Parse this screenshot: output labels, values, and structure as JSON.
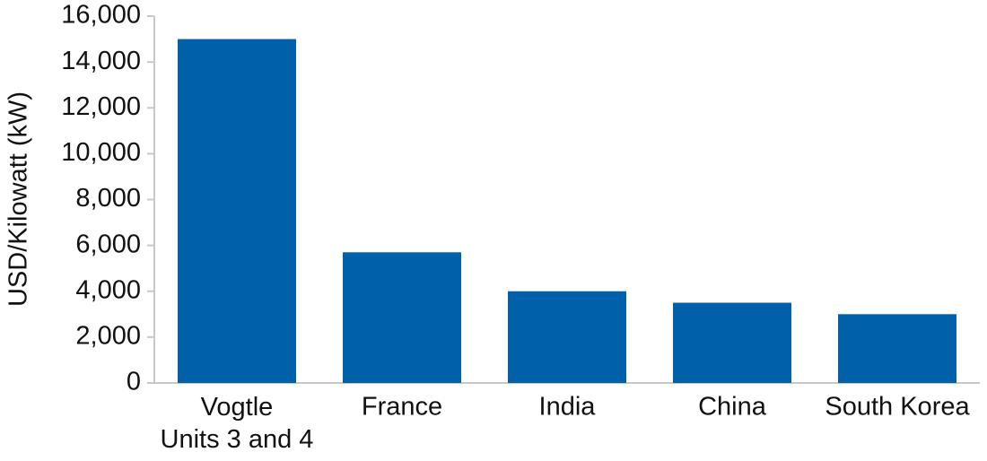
{
  "chart_data": {
    "type": "bar",
    "y_label": "USD/Kilowatt (kW)",
    "categories": [
      "Vogtle\nUnits 3 and 4",
      "France",
      "India",
      "China",
      "South Korea"
    ],
    "values": [
      15000,
      5700,
      4000,
      3500,
      3000
    ],
    "color": "#0060a9",
    "ylim": [
      0,
      16000
    ],
    "yticks": [
      0,
      {
        "value": 2000,
        "label": "2,000"
      },
      {
        "value": 4000,
        "label": "4,000"
      },
      {
        "value": 6000,
        "label": "6,000"
      },
      {
        "value": 8000,
        "label": "8,000"
      },
      {
        "value": 10000,
        "label": "10,000"
      },
      {
        "value": 12000,
        "label": "12,000"
      },
      {
        "value": 14000,
        "label": "14,000"
      },
      {
        "value": 16000,
        "label": "16,000"
      }
    ],
    "grid": false
  }
}
